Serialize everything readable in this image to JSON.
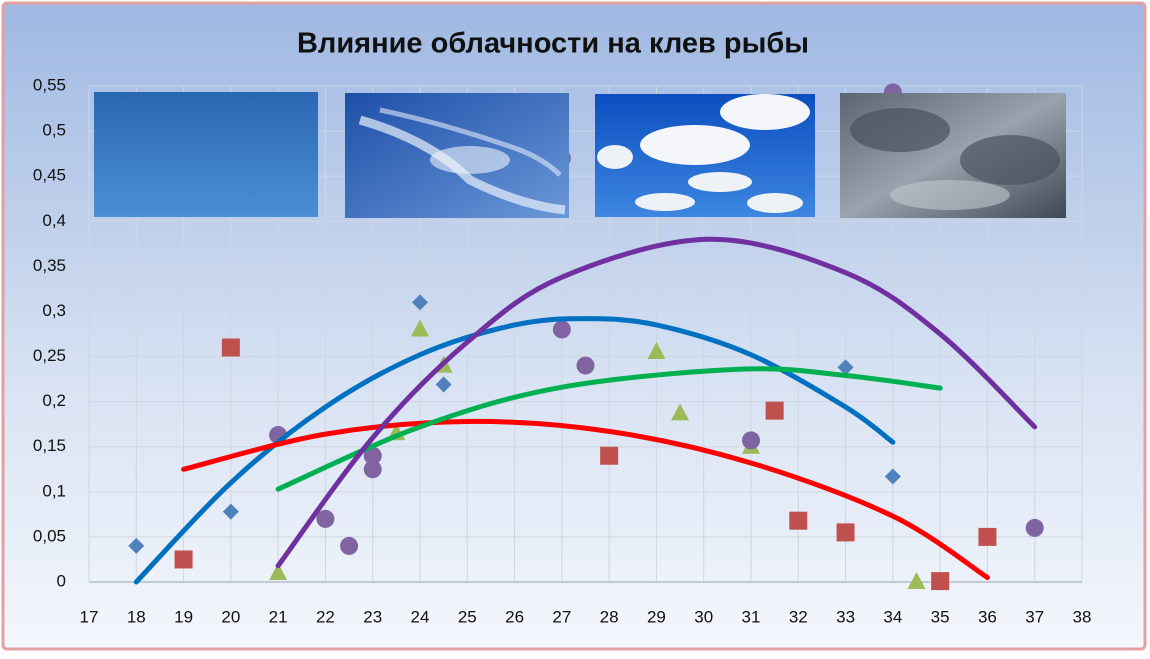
{
  "chart_data": {
    "type": "scatter",
    "title": "Влияние облачности на клев рыбы",
    "xlim": [
      17,
      38
    ],
    "xticks": [
      17,
      18,
      19,
      20,
      21,
      22,
      23,
      24,
      25,
      26,
      27,
      28,
      29,
      30,
      31,
      32,
      33,
      34,
      35,
      36,
      37,
      38
    ],
    "ylim": [
      0,
      0.55
    ],
    "yticks": [
      0,
      {
        "value": 0.05,
        "label": "0,05"
      },
      {
        "value": 0.1,
        "label": "0,1"
      },
      {
        "value": 0.15,
        "label": "0,15"
      },
      {
        "value": 0.2,
        "label": "0,2"
      },
      {
        "value": 0.25,
        "label": "0,25"
      },
      {
        "value": 0.3,
        "label": "0,3"
      },
      {
        "value": 0.35,
        "label": "0,35"
      },
      {
        "value": 0.4,
        "label": "0,4"
      },
      {
        "value": 0.45,
        "label": "0,45"
      },
      {
        "value": 0.5,
        "label": "0,5"
      },
      {
        "value": 0.55,
        "label": "0,55"
      }
    ],
    "grid": true,
    "series": [
      {
        "color": "#4f81bd",
        "marker": "diamond",
        "x": [
          18,
          20,
          24,
          24.5,
          33,
          34
        ],
        "values": [
          0.04,
          0.078,
          0.31,
          0.219,
          0.238,
          0.117
        ]
      },
      {
        "color": "#c0504d",
        "marker": "square",
        "x": [
          19,
          20,
          28,
          31.5,
          32,
          33,
          35,
          36
        ],
        "values": [
          0.025,
          0.26,
          0.14,
          0.19,
          0.068,
          0.055,
          0.001,
          0.05
        ]
      },
      {
        "color": "#9bbb59",
        "marker": "triangle",
        "x": [
          21,
          23.5,
          24,
          24.5,
          29,
          29.5,
          31,
          34.5
        ],
        "values": [
          0.01,
          0.165,
          0.28,
          0.24,
          0.255,
          0.187,
          0.15,
          0.0
        ]
      },
      {
        "color": "#8064a2",
        "marker": "circle",
        "x": [
          21,
          22,
          22.5,
          23,
          23,
          27,
          27,
          27.5,
          31,
          34,
          37
        ],
        "values": [
          0.163,
          0.07,
          0.04,
          0.14,
          0.125,
          0.28,
          0.47,
          0.24,
          0.157,
          0.543,
          0.06
        ]
      }
    ],
    "trendlines": [
      {
        "color": "#0070c0",
        "x": [
          18,
          20,
          22,
          24,
          26,
          27.5,
          29,
          31,
          33,
          34
        ],
        "values": [
          0,
          0.11,
          0.194,
          0.252,
          0.285,
          0.292,
          0.285,
          0.252,
          0.194,
          0.155
        ]
      },
      {
        "color": "#ff0000",
        "x": [
          19,
          22,
          25,
          28,
          31,
          34,
          36
        ],
        "values": [
          0.125,
          0.164,
          0.178,
          0.167,
          0.132,
          0.073,
          0.005
        ]
      },
      {
        "color": "#00b050",
        "x": [
          21,
          24,
          27,
          30.8,
          33,
          35
        ],
        "values": [
          0.103,
          0.172,
          0.216,
          0.236,
          0.229,
          0.215
        ]
      },
      {
        "color": "#7030a0",
        "x": [
          21,
          23,
          25,
          27,
          30.1,
          33,
          35,
          37
        ],
        "values": [
          0.018,
          0.16,
          0.266,
          0.338,
          0.38,
          0.343,
          0.275,
          0.172
        ]
      }
    ]
  }
}
